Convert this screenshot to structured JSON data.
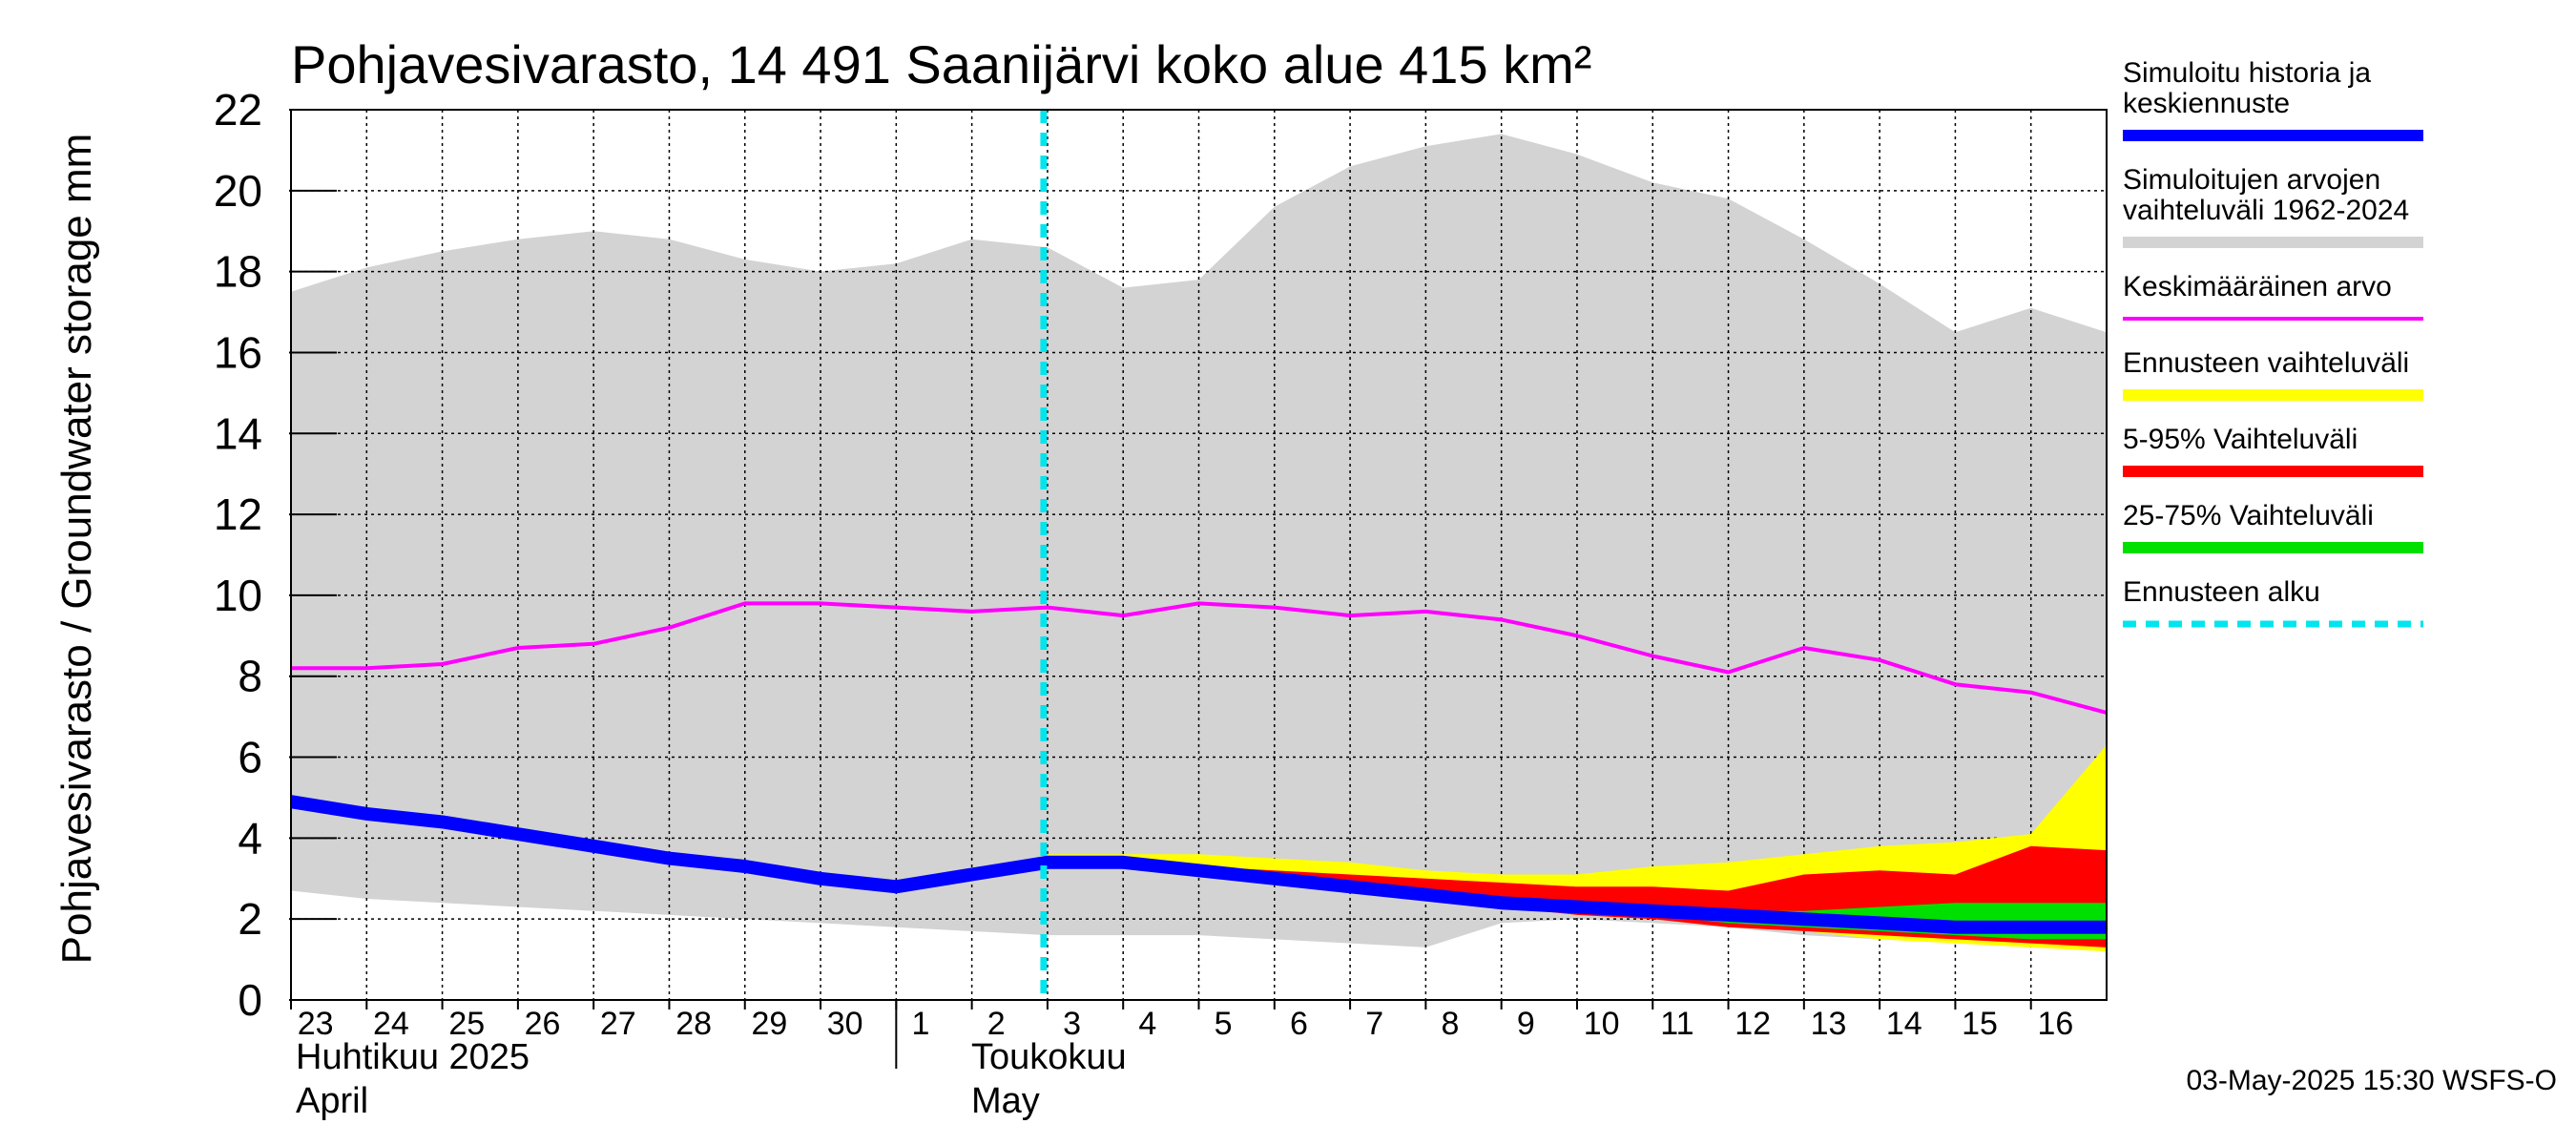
{
  "chart_data": {
    "type": "area",
    "title": "Pohjavesivarasto, 14 491 Saanijärvi koko alue 415 km²",
    "ylabel": "Pohjavesivarasto / Groundwater storage   mm",
    "ylim": [
      0,
      22
    ],
    "yticks": [
      0,
      2,
      4,
      6,
      8,
      10,
      12,
      14,
      16,
      18,
      20,
      22
    ],
    "grid": true,
    "x_dates": [
      "2025-04-23",
      "2025-04-24",
      "2025-04-25",
      "2025-04-26",
      "2025-04-27",
      "2025-04-28",
      "2025-04-29",
      "2025-04-30",
      "2025-05-01",
      "2025-05-02",
      "2025-05-03",
      "2025-05-04",
      "2025-05-05",
      "2025-05-06",
      "2025-05-07",
      "2025-05-08",
      "2025-05-09",
      "2025-05-10",
      "2025-05-11",
      "2025-05-12",
      "2025-05-13",
      "2025-05-14",
      "2025-05-15",
      "2025-05-16",
      "2025-05-17"
    ],
    "x_tick_labels": [
      "23",
      "24",
      "25",
      "26",
      "27",
      "28",
      "29",
      "30",
      "1",
      "2",
      "3",
      "4",
      "5",
      "6",
      "7",
      "8",
      "9",
      "10",
      "11",
      "12",
      "13",
      "14",
      "15",
      "16"
    ],
    "month_labels": [
      {
        "line1": "Huhtikuu  2025",
        "line2": "April"
      },
      {
        "line1": "Toukokuu",
        "line2": "May"
      }
    ],
    "forecast_start": "2025-05-03",
    "series": [
      {
        "key": "range_hist",
        "name": "Simuloitujen arvojen vaihteluväli 1962-2024",
        "kind": "band",
        "color": "#d3d3d3",
        "upper": [
          17.5,
          18.1,
          18.5,
          18.8,
          19.0,
          18.8,
          18.3,
          18.0,
          18.2,
          18.8,
          18.6,
          17.6,
          17.8,
          19.6,
          20.6,
          21.1,
          21.4,
          20.9,
          20.2,
          19.8,
          18.8,
          17.7,
          16.5,
          17.1,
          16.5
        ],
        "lower": [
          2.7,
          2.5,
          2.4,
          2.3,
          2.2,
          2.1,
          2.0,
          1.9,
          1.8,
          1.7,
          1.6,
          1.6,
          1.6,
          1.5,
          1.4,
          1.3,
          1.9,
          2.0,
          1.9,
          1.8,
          1.6,
          1.5,
          1.4,
          1.3,
          1.2
        ]
      },
      {
        "key": "range_fc",
        "name": "Ennusteen vaihteluväli",
        "kind": "band",
        "color": "#ffff00",
        "start_index": 10,
        "upper": [
          3.6,
          3.6,
          3.6,
          3.5,
          3.4,
          3.2,
          3.1,
          3.1,
          3.3,
          3.4,
          3.6,
          3.8,
          3.9,
          4.1,
          6.3
        ],
        "lower": [
          3.4,
          3.3,
          3.1,
          2.9,
          2.7,
          2.5,
          2.3,
          2.1,
          2.0,
          1.8,
          1.7,
          1.5,
          1.4,
          1.3,
          1.2
        ]
      },
      {
        "key": "p5_95",
        "name": "5-95% Vaihteluväli",
        "kind": "band",
        "color": "#ff0000",
        "start_index": 10,
        "upper": [
          3.5,
          3.4,
          3.3,
          3.2,
          3.1,
          3.0,
          2.9,
          2.8,
          2.8,
          2.7,
          3.1,
          3.2,
          3.1,
          3.8,
          3.7
        ],
        "lower": [
          3.4,
          3.3,
          3.1,
          2.9,
          2.7,
          2.5,
          2.3,
          2.1,
          2.0,
          1.8,
          1.7,
          1.6,
          1.5,
          1.4,
          1.3
        ]
      },
      {
        "key": "p25_75",
        "name": "25-75% Vaihteluväli",
        "kind": "band",
        "color": "#00e000",
        "start_index": 10,
        "upper": [
          3.4,
          3.3,
          3.2,
          3.0,
          2.8,
          2.7,
          2.5,
          2.3,
          2.3,
          2.2,
          2.2,
          2.3,
          2.4,
          2.4,
          2.4
        ],
        "lower": [
          3.4,
          3.3,
          3.1,
          2.9,
          2.7,
          2.5,
          2.3,
          2.2,
          2.1,
          1.9,
          1.8,
          1.7,
          1.6,
          1.5,
          1.5
        ]
      },
      {
        "key": "mean",
        "name": "Keskimääräinen arvo",
        "kind": "line",
        "color": "#ff00ff",
        "values": [
          8.2,
          8.2,
          8.3,
          8.7,
          8.8,
          9.2,
          9.8,
          9.8,
          9.7,
          9.6,
          9.7,
          9.5,
          9.8,
          9.7,
          9.5,
          9.6,
          9.4,
          9.0,
          8.5,
          8.1,
          8.7,
          8.4,
          7.8,
          7.6,
          7.1
        ]
      },
      {
        "key": "sim",
        "name": "Simuloitu historia ja keskiennuste",
        "kind": "line",
        "color": "#0000ff",
        "values": [
          4.9,
          4.6,
          4.4,
          4.1,
          3.8,
          3.5,
          3.3,
          3.0,
          2.8,
          3.1,
          3.4,
          3.4,
          3.2,
          3.0,
          2.8,
          2.6,
          2.4,
          2.3,
          2.2,
          2.1,
          2.0,
          1.9,
          1.8,
          1.8,
          1.8
        ]
      }
    ],
    "legend": [
      {
        "key": "sim",
        "label": "Simuloitu historia ja keskiennuste",
        "color": "#0000ff",
        "style": "thick"
      },
      {
        "key": "range_hist",
        "label": "Simuloitujen arvojen vaihteluväli 1962-2024",
        "color": "#d3d3d3",
        "style": "thick"
      },
      {
        "key": "mean",
        "label": "Keskimääräinen arvo",
        "color": "#ff00ff",
        "style": "thin"
      },
      {
        "key": "range_fc",
        "label": "Ennusteen vaihteluväli",
        "color": "#ffff00",
        "style": "thick"
      },
      {
        "key": "p5_95",
        "label": "5-95% Vaihteluväli",
        "color": "#ff0000",
        "style": "thick"
      },
      {
        "key": "p25_75",
        "label": "25-75% Vaihteluväli",
        "color": "#00e000",
        "style": "thick"
      },
      {
        "key": "fc_start",
        "label": "Ennusteen alku",
        "color": "#00e5ee",
        "style": "dashed"
      }
    ],
    "legend_placement": "right",
    "footer": "03-May-2025 15:30 WSFS-O"
  }
}
